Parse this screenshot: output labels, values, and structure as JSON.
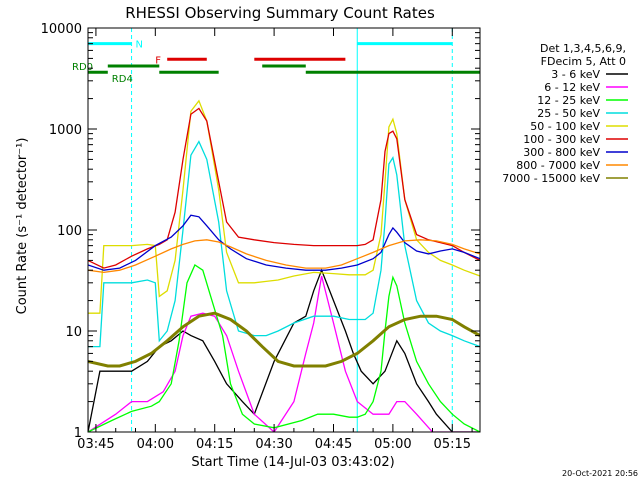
{
  "chart_data": {
    "type": "line",
    "title": "RHESSI Observing Summary Count Rates",
    "xlabel": "Start Time (14-Jul-03 03:43:02)",
    "ylabel": "Count Rate (s⁻¹ detector⁻¹)",
    "xlim_min": [
      -2,
      97
    ],
    "yscale": "log",
    "ylim": [
      1,
      10000
    ],
    "x_ticks": [
      {
        "label": "03:45",
        "min": 0
      },
      {
        "label": "04:00",
        "min": 15
      },
      {
        "label": "04:15",
        "min": 30
      },
      {
        "label": "04:30",
        "min": 45
      },
      {
        "label": "04:45",
        "min": 60
      },
      {
        "label": "05:00",
        "min": 75
      },
      {
        "label": "05:15",
        "min": 90
      }
    ],
    "y_ticks": [
      {
        "label": "1",
        "v": 1
      },
      {
        "label": "10",
        "v": 10
      },
      {
        "label": "100",
        "v": 100
      },
      {
        "label": "1000",
        "v": 1000
      },
      {
        "label": "10000",
        "v": 10000
      }
    ],
    "legend_header": [
      "Det 1,3,4,5,6,9,",
      "FDecim 5, Att 0"
    ],
    "legend_position": "right",
    "timestamp": "20-Oct-2021 20:56",
    "night_boundaries_min": [
      -2,
      9,
      66,
      90
    ],
    "state_bars": [
      {
        "label": "N",
        "color": "#00ffff",
        "y": 7000,
        "segments": [
          [
            -2,
            9
          ],
          [
            66,
            90
          ]
        ]
      },
      {
        "label": "F",
        "color": "#dd0000",
        "y": 4900,
        "segments": [
          [
            18,
            28
          ],
          [
            40,
            63
          ]
        ]
      },
      {
        "label": "RD0",
        "color": "#008000",
        "y": 4200,
        "segments": [
          [
            3,
            16
          ],
          [
            42,
            53
          ]
        ]
      },
      {
        "label": "RD4",
        "color": "#008000",
        "y": 3650,
        "segments": [
          [
            -2,
            3
          ],
          [
            16,
            31
          ],
          [
            53,
            97
          ]
        ]
      }
    ],
    "series": [
      {
        "name": "3 - 6 keV",
        "color": "#000000",
        "x": [
          -2,
          1,
          6,
          9,
          13,
          16,
          19,
          22,
          24,
          27,
          30,
          33,
          37,
          40,
          45,
          50,
          53,
          55,
          57,
          60,
          63,
          65,
          67,
          70,
          73,
          76,
          78,
          81,
          84,
          86,
          90,
          93,
          97
        ],
        "y": [
          1,
          4,
          4,
          4,
          5,
          7,
          8,
          10,
          9,
          8,
          5,
          3,
          2,
          1.5,
          5,
          12,
          14,
          25,
          40,
          20,
          10,
          6,
          4,
          3,
          4,
          8,
          6,
          3,
          2,
          1.5,
          1,
          1,
          1
        ]
      },
      {
        "name": "6 - 12 keV",
        "color": "#ff00ff",
        "x": [
          -2,
          5,
          9,
          13,
          17,
          20,
          22,
          24,
          27,
          30,
          33,
          36,
          40,
          45,
          50,
          53,
          55,
          57,
          60,
          63,
          66,
          70,
          74,
          76,
          78,
          81,
          85,
          88,
          90,
          93,
          97
        ],
        "y": [
          1,
          1.5,
          2,
          2,
          2.5,
          4,
          9,
          14,
          15,
          14,
          9,
          4,
          1.5,
          1,
          2,
          6,
          12,
          35,
          12,
          4,
          2,
          1.5,
          1.5,
          2,
          2,
          1.5,
          1,
          1,
          1,
          1,
          1
        ]
      },
      {
        "name": "12 - 25 keV",
        "color": "#00ff00",
        "x": [
          -2,
          4,
          9,
          14,
          16,
          19,
          21,
          23,
          25,
          27,
          29,
          32,
          34,
          37,
          40,
          45,
          52,
          56,
          60,
          64,
          66,
          68,
          70,
          72,
          73,
          74,
          75,
          76,
          78,
          81,
          84,
          87,
          90,
          93,
          97
        ],
        "y": [
          1,
          1.3,
          1.6,
          1.8,
          2,
          3,
          8,
          30,
          45,
          40,
          22,
          9,
          3,
          1.5,
          1.2,
          1.1,
          1.3,
          1.5,
          1.5,
          1.4,
          1.4,
          1.5,
          2,
          4,
          10,
          22,
          34,
          28,
          12,
          5,
          3,
          2,
          1.5,
          1.2,
          1
        ]
      },
      {
        "name": "25 - 50 keV",
        "color": "#00dddd",
        "x": [
          -2,
          1,
          2,
          5,
          9,
          13,
          15,
          16,
          18,
          20,
          22,
          24,
          26,
          28,
          31,
          33,
          36,
          40,
          43,
          46,
          50,
          55,
          60,
          64,
          66,
          68,
          70,
          72,
          73,
          74,
          75,
          76,
          78,
          81,
          84,
          87,
          90,
          93,
          97
        ],
        "y": [
          7,
          7,
          30,
          30,
          30,
          32,
          30,
          8,
          10,
          20,
          100,
          550,
          750,
          500,
          120,
          25,
          10,
          9,
          9,
          10,
          12,
          14,
          14,
          13,
          13,
          13,
          15,
          40,
          120,
          450,
          520,
          350,
          70,
          20,
          12,
          10,
          9,
          8,
          7
        ]
      },
      {
        "name": "50 - 100 keV",
        "color": "#dddd00",
        "x": [
          -2,
          1,
          2,
          5,
          9,
          13,
          15,
          16,
          18,
          20,
          22,
          24,
          26,
          28,
          31,
          33,
          36,
          40,
          43,
          46,
          50,
          55,
          60,
          64,
          66,
          68,
          70,
          72,
          73,
          74,
          75,
          76,
          78,
          81,
          84,
          87,
          90,
          93,
          97
        ],
        "y": [
          15,
          15,
          70,
          70,
          70,
          72,
          70,
          22,
          25,
          50,
          250,
          1500,
          1900,
          1200,
          250,
          60,
          30,
          30,
          31,
          32,
          35,
          38,
          37,
          36,
          36,
          36,
          40,
          90,
          300,
          1050,
          1250,
          900,
          200,
          80,
          60,
          50,
          45,
          40,
          35
        ]
      },
      {
        "name": "100 - 300 keV",
        "color": "#dd0000",
        "x": [
          -2,
          2,
          5,
          9,
          13,
          16,
          18,
          20,
          22,
          24,
          26,
          28,
          31,
          33,
          36,
          40,
          45,
          50,
          55,
          60,
          64,
          66,
          68,
          70,
          72,
          73,
          74,
          75,
          76,
          78,
          81,
          84,
          87,
          90,
          93,
          97
        ],
        "y": [
          50,
          42,
          45,
          55,
          65,
          72,
          80,
          150,
          500,
          1400,
          1600,
          1200,
          300,
          120,
          85,
          80,
          75,
          72,
          70,
          70,
          70,
          70,
          72,
          80,
          200,
          600,
          900,
          950,
          800,
          200,
          90,
          80,
          75,
          70,
          60,
          50
        ]
      },
      {
        "name": "300 - 800 keV",
        "color": "#0000cc",
        "x": [
          -2,
          2,
          6,
          10,
          15,
          19,
          22,
          24,
          26,
          28,
          31,
          34,
          38,
          43,
          48,
          53,
          58,
          62,
          66,
          70,
          72,
          74,
          75,
          76,
          78,
          81,
          84,
          87,
          90,
          93,
          97
        ],
        "y": [
          45,
          40,
          42,
          50,
          70,
          85,
          110,
          140,
          135,
          110,
          80,
          65,
          52,
          45,
          42,
          40,
          40,
          42,
          45,
          52,
          60,
          90,
          105,
          95,
          75,
          62,
          58,
          62,
          65,
          60,
          52
        ]
      },
      {
        "name": "800 - 7000 keV",
        "color": "#ff8800",
        "x": [
          -2,
          2,
          6,
          10,
          15,
          19,
          22,
          25,
          28,
          31,
          34,
          38,
          43,
          48,
          53,
          58,
          62,
          66,
          70,
          74,
          78,
          82,
          86,
          90,
          93,
          97
        ],
        "y": [
          40,
          38,
          40,
          45,
          55,
          65,
          72,
          78,
          80,
          76,
          68,
          58,
          50,
          45,
          42,
          42,
          45,
          52,
          60,
          70,
          78,
          80,
          78,
          72,
          65,
          58
        ]
      },
      {
        "name": "7000 - 15000 keV",
        "color": "#808000",
        "x": [
          -2,
          3,
          6,
          10,
          14,
          18,
          22,
          26,
          30,
          34,
          38,
          42,
          46,
          50,
          54,
          58,
          62,
          66,
          70,
          74,
          78,
          82,
          86,
          90,
          93,
          97
        ],
        "y": [
          5,
          4.5,
          4.5,
          5,
          6,
          8,
          11,
          14,
          15,
          13,
          10,
          7,
          5,
          4.5,
          4.5,
          4.5,
          5,
          6,
          8,
          11,
          13,
          14,
          14,
          13,
          11,
          9
        ]
      }
    ]
  }
}
